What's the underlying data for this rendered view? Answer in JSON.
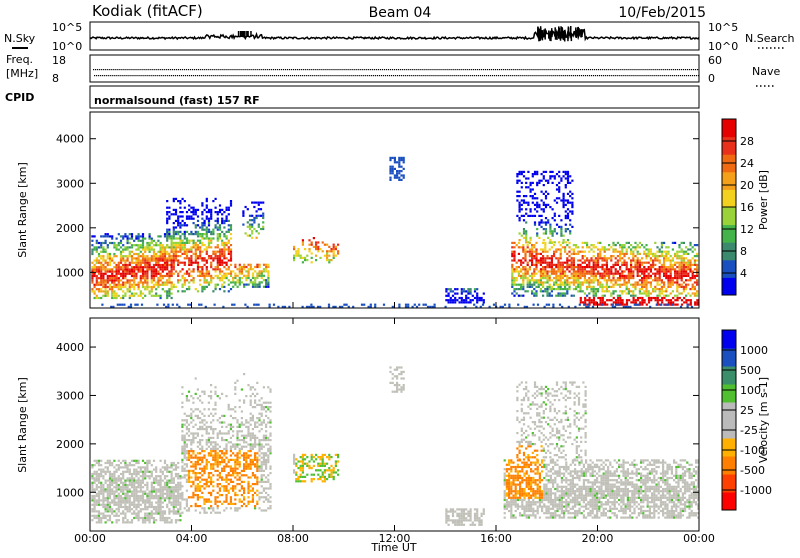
{
  "header": {
    "station": "Kodiak (fitACF)",
    "beam": "Beam 04",
    "date": "10/Feb/2015"
  },
  "top_panels": {
    "nsky_label": "N.Sky",
    "nsky_ticks": [
      "10^5",
      "10^0"
    ],
    "nsearch_label": "N.Search",
    "freq_label_1": "Freq.",
    "freq_label_2": "[MHz]",
    "freq_ticks": [
      "18",
      "8"
    ],
    "nave_label": "Nave",
    "nave_ticks": [
      "60",
      "0"
    ],
    "cpid_label": "CPID",
    "cpid_value": "normalsound (fast) 157 RF"
  },
  "colors": {
    "power_scale": [
      "#0000ee",
      "#1a4fc0",
      "#3c8a6e",
      "#44b34a",
      "#9ad23a",
      "#f2d21e",
      "#f5a01a",
      "#f06a12",
      "#e8301a",
      "#e60000"
    ],
    "velocity_scale": [
      "#ff0000",
      "#ff4000",
      "#ff8000",
      "#ffb000",
      "#bbbbbb",
      "#bbbbbb",
      "#50c030",
      "#3a8f6a",
      "#1a4fc0",
      "#0000ee"
    ],
    "ground_scatter": "#c0c0b8"
  },
  "chart_data": [
    {
      "type": "heatmap",
      "title": "Power",
      "xlabel": "",
      "ylabel": "Slant Range [km]",
      "x_ticks": [
        "00:00",
        "04:00",
        "08:00",
        "12:00",
        "16:00",
        "20:00",
        "00:00"
      ],
      "y_ticks": [
        "1000",
        "2000",
        "3000",
        "4000"
      ],
      "xlim_hours": [
        0,
        24
      ],
      "ylim_km": [
        200,
        4600
      ],
      "colorbar_label": "Power [dB]",
      "colorbar_ticks": [
        "4",
        "8",
        "12",
        "16",
        "20",
        "24",
        "28"
      ],
      "colorbar_range": [
        0,
        32
      ]
    },
    {
      "type": "heatmap",
      "title": "Velocity",
      "xlabel": "Time UT",
      "ylabel": "Slant Range [km]",
      "x_ticks": [
        "00:00",
        "04:00",
        "08:00",
        "12:00",
        "16:00",
        "20:00",
        "00:00"
      ],
      "y_ticks": [
        "1000",
        "2000",
        "3000",
        "4000"
      ],
      "xlim_hours": [
        0,
        24
      ],
      "ylim_km": [
        200,
        4600
      ],
      "colorbar_label": "Velocity [m s-1]",
      "colorbar_ticks": [
        "1000",
        "500",
        "100",
        "25",
        "-25",
        "-100",
        "-500",
        "-1000"
      ]
    }
  ]
}
